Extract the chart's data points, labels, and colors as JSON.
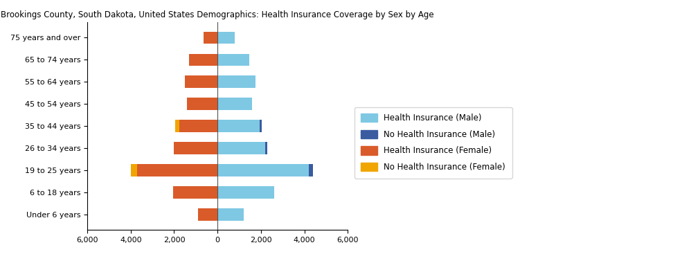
{
  "title": "Brookings County, South Dakota, United States Demographics: Health Insurance Coverage by Sex by Age",
  "age_groups": [
    "Under 6 years",
    "6 to 18 years",
    "19 to 25 years",
    "26 to 34 years",
    "35 to 44 years",
    "45 to 54 years",
    "55 to 64 years",
    "65 to 74 years",
    "75 years and over"
  ],
  "health_insurance_male": [
    1200,
    2600,
    4200,
    2200,
    1950,
    1600,
    1750,
    1450,
    780
  ],
  "no_health_insurance_male": [
    0,
    0,
    200,
    100,
    100,
    0,
    0,
    0,
    0
  ],
  "health_insurance_female": [
    900,
    2050,
    3700,
    2000,
    1750,
    1400,
    1500,
    1300,
    650
  ],
  "no_health_insurance_female": [
    0,
    0,
    300,
    0,
    200,
    0,
    0,
    0,
    0
  ],
  "xlim": 6000,
  "xticks": [
    -6000,
    -4000,
    -2000,
    0,
    2000,
    4000,
    6000
  ],
  "xticklabels": [
    "6,000",
    "4,000",
    "2,000",
    "0",
    "2,000",
    "4,000",
    "6,000"
  ],
  "color_health_male": "#7EC8E3",
  "color_no_health_male": "#3A5BA0",
  "color_health_female": "#D95B2A",
  "color_no_health_female": "#F0A500",
  "background_color": "#ffffff",
  "legend_labels": [
    "Health Insurance (Male)",
    "No Health Insurance (Male)",
    "Health Insurance (Female)",
    "No Health Insurance (Female)"
  ]
}
